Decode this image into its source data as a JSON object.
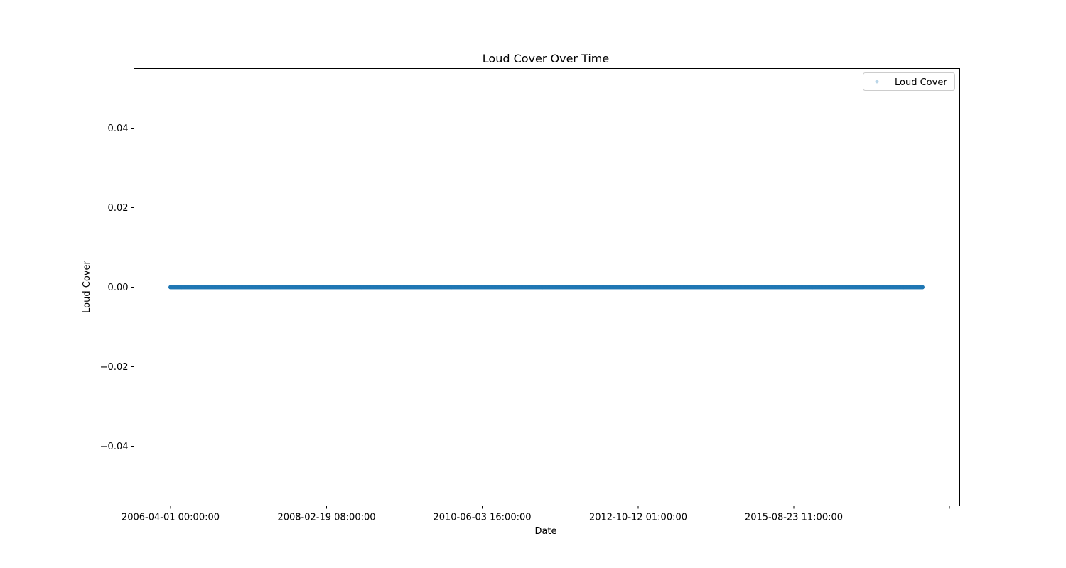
{
  "chart_data": {
    "type": "scatter",
    "title": "Loud Cover Over Time",
    "xlabel": "Date",
    "ylabel": "Loud Cover",
    "x_tick_labels": [
      "2006-04-01 00:00:00",
      "2008-02-19 08:00:00",
      "2010-06-03 16:00:00",
      "2012-10-12 01:00:00",
      "2015-08-23 11:00:00",
      ""
    ],
    "y_ticks": [
      -0.04,
      -0.02,
      0.0,
      0.02,
      0.04
    ],
    "y_tick_labels": [
      "−0.04",
      "−0.02",
      "0.00",
      "0.02",
      "0.04"
    ],
    "ylim": [
      -0.055,
      0.055
    ],
    "x_range": [
      "2006-04-01 00:00:00",
      "2016-09-09 23:00:00"
    ],
    "series": [
      {
        "name": "Loud Cover",
        "color": "#1f77b4",
        "y_value": 0.0,
        "marker": "circle",
        "description_note": null
      }
    ],
    "legend": {
      "position": "top-right",
      "entries": [
        "Loud Cover"
      ]
    },
    "grid": false
  }
}
